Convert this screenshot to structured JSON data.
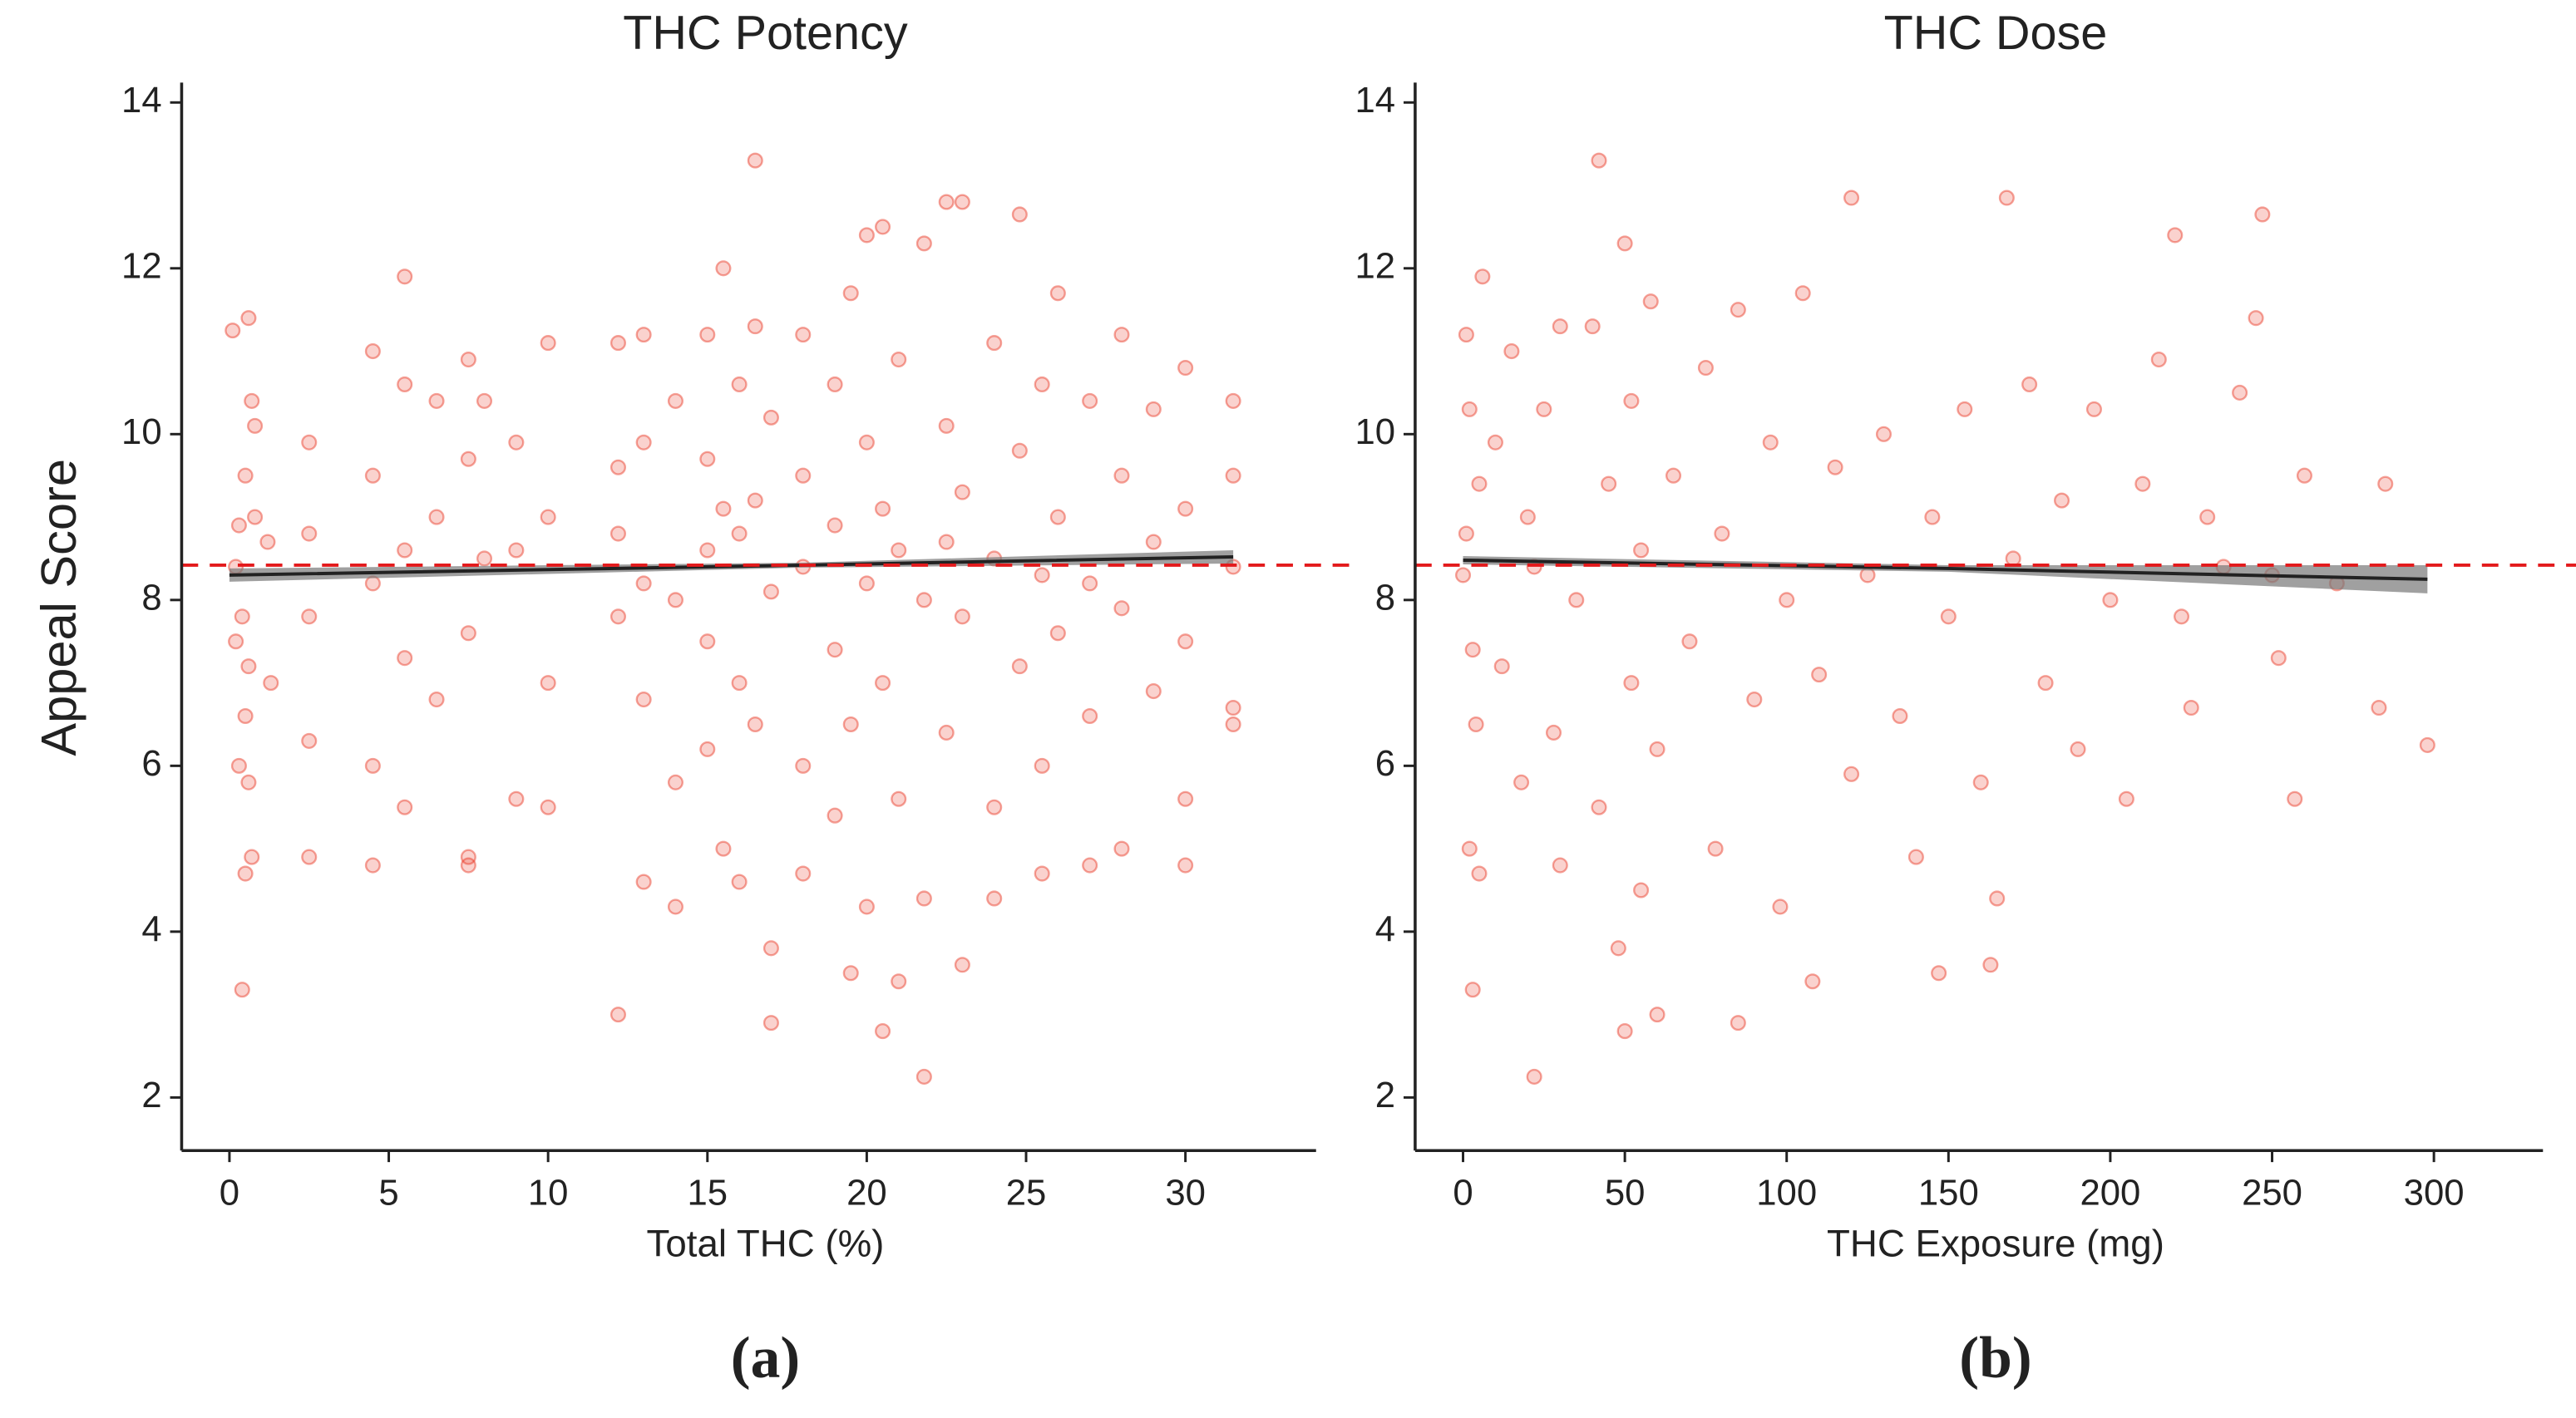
{
  "chart_data": [
    {
      "type": "scatter",
      "title": "THC Potency",
      "x_label": "Total THC (%)",
      "y_label": "Appeal Score",
      "panel_label": "(a)",
      "color": "#e8321e",
      "xlim": [
        -1.5,
        34.1
      ],
      "ylim": [
        1.36,
        14.24
      ],
      "xticks": [
        0,
        5,
        10,
        15,
        20,
        25,
        30
      ],
      "yticks": [
        2,
        4,
        6,
        8,
        10,
        12,
        14
      ],
      "reference_line": 8.42,
      "trend_line": {
        "x": [
          0,
          18,
          31.5
        ],
        "y": [
          8.3,
          8.42,
          8.52
        ],
        "lower": [
          8.22,
          8.39,
          8.44
        ],
        "upper": [
          8.38,
          8.45,
          8.6
        ]
      },
      "x": [
        0.3,
        0.5,
        0.7,
        0.4,
        0.6,
        0.2,
        0.8,
        0.5,
        0.6,
        0.7,
        0.5,
        0.4,
        0.1,
        0.6,
        0.3,
        0.8,
        0.2,
        1.2,
        1.3,
        2.5,
        2.5,
        2.5,
        2.5,
        2.5,
        4.5,
        4.5,
        4.5,
        4.5,
        4.5,
        5.5,
        5.5,
        5.5,
        5.5,
        5.5,
        6.5,
        6.5,
        6.5,
        7.5,
        7.5,
        7.5,
        7.5,
        7.5,
        8,
        8,
        9,
        9,
        9,
        10,
        10,
        10,
        10,
        12.2,
        12.2,
        12.2,
        12.2,
        12.2,
        13,
        13,
        13,
        13,
        13,
        14,
        14,
        14,
        14,
        15,
        15,
        15,
        15,
        15,
        15.5,
        15.5,
        15.5,
        16,
        16,
        16,
        16,
        16.5,
        16.5,
        16.5,
        16.5,
        17,
        17,
        17,
        17,
        18,
        18,
        18,
        18,
        18,
        19,
        19,
        19,
        19,
        19.5,
        19.5,
        19.5,
        20,
        20,
        20,
        20,
        20.5,
        20.5,
        20.5,
        20.5,
        21,
        21,
        21,
        21,
        21.8,
        21.8,
        21.8,
        21.8,
        22.5,
        22.5,
        22.5,
        22.5,
        23,
        23,
        23,
        23,
        24,
        24,
        24,
        24,
        24.8,
        24.8,
        24.8,
        25.5,
        25.5,
        25.5,
        25.5,
        26,
        26,
        26,
        27,
        27,
        27,
        27,
        28,
        28,
        28,
        28,
        29,
        29,
        29,
        30,
        30,
        30,
        30,
        30,
        31.5,
        31.5,
        31.5,
        31.5,
        31.5
      ],
      "y": [
        8.9,
        9.5,
        10.4,
        7.8,
        7.2,
        8.4,
        10.1,
        6.6,
        5.8,
        4.9,
        4.7,
        3.3,
        11.25,
        11.4,
        6.0,
        9.0,
        7.5,
        8.7,
        7.0,
        9.9,
        8.8,
        6.3,
        4.9,
        7.8,
        11.0,
        9.5,
        8.2,
        6.0,
        4.8,
        11.9,
        10.6,
        8.6,
        7.3,
        5.5,
        10.4,
        9.0,
        6.8,
        10.9,
        9.7,
        7.6,
        4.9,
        4.8,
        10.4,
        8.5,
        9.9,
        8.6,
        5.6,
        11.1,
        9.0,
        7.0,
        5.5,
        11.1,
        9.6,
        8.8,
        3.0,
        7.8,
        11.2,
        9.9,
        8.2,
        6.8,
        4.6,
        10.4,
        8.0,
        5.8,
        4.3,
        11.2,
        9.7,
        8.6,
        7.5,
        6.2,
        12.0,
        9.1,
        5.0,
        10.6,
        8.8,
        7.0,
        4.6,
        13.3,
        11.3,
        9.2,
        6.5,
        10.2,
        8.1,
        2.9,
        3.8,
        11.2,
        9.5,
        8.4,
        6.0,
        4.7,
        10.6,
        8.9,
        7.4,
        5.4,
        11.7,
        6.5,
        3.5,
        12.4,
        9.9,
        8.2,
        4.3,
        12.5,
        9.1,
        7.0,
        2.8,
        10.9,
        8.6,
        5.6,
        3.4,
        12.3,
        8.0,
        2.25,
        4.4,
        12.8,
        10.1,
        8.7,
        6.4,
        12.8,
        9.3,
        7.8,
        3.6,
        11.1,
        8.5,
        5.5,
        4.4,
        12.65,
        9.8,
        7.2,
        10.6,
        8.3,
        6.0,
        4.7,
        11.7,
        9.0,
        7.6,
        10.4,
        8.2,
        6.6,
        4.8,
        11.2,
        9.5,
        7.9,
        5.0,
        10.3,
        8.7,
        6.9,
        10.8,
        9.1,
        7.5,
        5.6,
        4.8,
        10.4,
        9.5,
        8.4,
        6.7,
        6.5
      ]
    },
    {
      "type": "scatter",
      "title": "THC Dose",
      "x_label": "THC Exposure (mg)",
      "panel_label": "(b)",
      "color": "#e8321e",
      "xlim": [
        -14.8,
        333.7
      ],
      "ylim": [
        1.36,
        14.24
      ],
      "xticks": [
        0,
        50,
        100,
        150,
        200,
        250,
        300
      ],
      "yticks": [
        2,
        4,
        6,
        8,
        10,
        12,
        14
      ],
      "reference_line": 8.42,
      "trend_line": {
        "x": [
          0,
          150,
          298
        ],
        "y": [
          8.48,
          8.38,
          8.25
        ],
        "lower": [
          8.43,
          8.34,
          8.08
        ],
        "upper": [
          8.53,
          8.42,
          8.42
        ]
      },
      "x": [
        1,
        2,
        3,
        1,
        4,
        2,
        5,
        3,
        0,
        6,
        5,
        10,
        12,
        15,
        18,
        20,
        22,
        22,
        25,
        28,
        30,
        30,
        35,
        40,
        42,
        42,
        45,
        48,
        50,
        50,
        52,
        52,
        55,
        55,
        58,
        60,
        60,
        65,
        70,
        75,
        78,
        80,
        85,
        85,
        90,
        95,
        98,
        100,
        105,
        108,
        110,
        115,
        120,
        120,
        125,
        130,
        135,
        140,
        145,
        147,
        150,
        155,
        160,
        163,
        165,
        168,
        170,
        175,
        180,
        185,
        190,
        195,
        200,
        205,
        210,
        215,
        220,
        222,
        225,
        230,
        235,
        240,
        245,
        247,
        250,
        252,
        257,
        260,
        270,
        283,
        285,
        298
      ],
      "y": [
        8.8,
        10.3,
        3.3,
        11.2,
        6.5,
        5.0,
        9.4,
        7.4,
        8.3,
        11.9,
        4.7,
        9.9,
        7.2,
        11.0,
        5.8,
        9.0,
        2.25,
        8.4,
        10.3,
        6.4,
        11.3,
        4.8,
        8.0,
        11.3,
        13.3,
        5.5,
        9.4,
        3.8,
        12.3,
        2.8,
        10.4,
        7.0,
        8.6,
        4.5,
        11.6,
        3.0,
        6.2,
        9.5,
        7.5,
        10.8,
        5.0,
        8.8,
        2.9,
        11.5,
        6.8,
        9.9,
        4.3,
        8.0,
        11.7,
        3.4,
        7.1,
        9.6,
        12.85,
        5.9,
        8.3,
        10.0,
        6.6,
        4.9,
        9.0,
        3.5,
        7.8,
        10.3,
        5.8,
        3.6,
        4.4,
        12.85,
        8.5,
        10.6,
        7.0,
        9.2,
        6.2,
        10.3,
        8.0,
        5.6,
        9.4,
        10.9,
        12.4,
        7.8,
        6.7,
        9.0,
        8.4,
        10.5,
        11.4,
        12.65,
        8.3,
        7.3,
        5.6,
        9.5,
        8.2,
        6.7,
        9.4,
        6.25
      ]
    }
  ]
}
